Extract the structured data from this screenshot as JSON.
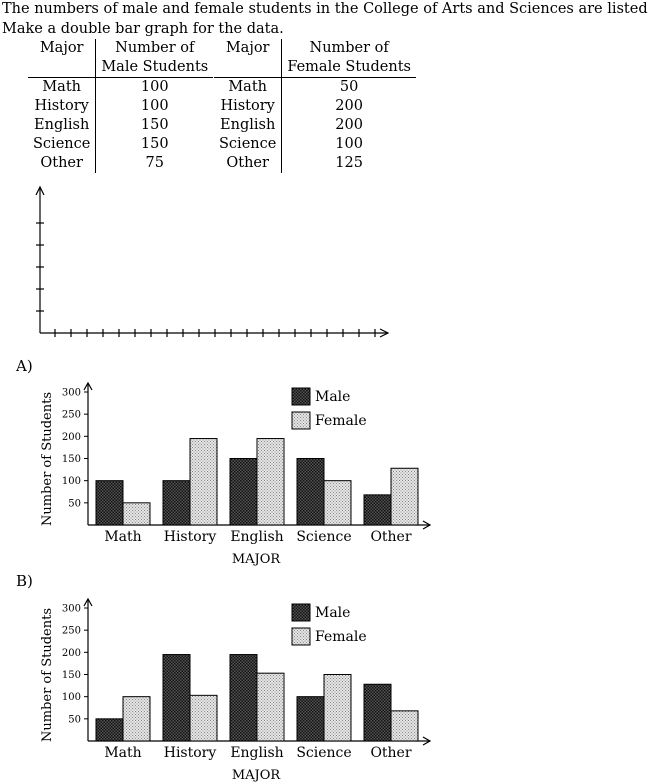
{
  "question": {
    "line1": "The numbers of male and female students in the College of Arts and Sciences are listed below by major.",
    "line2": "Make a double bar graph for the data."
  },
  "male_table": {
    "col1": "Major",
    "col2_line1": "Number of",
    "col2_line2": "Male Students",
    "rows": [
      [
        "Math",
        "100"
      ],
      [
        "History",
        "100"
      ],
      [
        "English",
        "150"
      ],
      [
        "Science",
        "150"
      ],
      [
        "Other",
        "75"
      ]
    ]
  },
  "female_table": {
    "col1": "Major",
    "col2_line1": "Number of",
    "col2_line2": "Female Students",
    "rows": [
      [
        "Math",
        "50"
      ],
      [
        "History",
        "200"
      ],
      [
        "English",
        "200"
      ],
      [
        "Science",
        "100"
      ],
      [
        "Other",
        "125"
      ]
    ]
  },
  "options": {
    "a": "A)",
    "b": "B)"
  },
  "chart_data": [
    {
      "type": "bar",
      "title": "",
      "xlabel": "",
      "ylabel": "",
      "yticks": 5,
      "xticks": 21
    },
    {
      "type": "bar",
      "categories": [
        "Math",
        "History",
        "English",
        "Science",
        "Other"
      ],
      "series": [
        {
          "name": "Male",
          "values": [
            100,
            100,
            150,
            150,
            68
          ]
        },
        {
          "name": "Female",
          "values": [
            50,
            195,
            195,
            100,
            128
          ]
        }
      ],
      "ylim": [
        0,
        300
      ],
      "yticks": [
        50,
        100,
        150,
        200,
        250,
        300
      ],
      "xlabel": "MAJOR",
      "ylabel": "Number of Students",
      "legend": "top-right"
    },
    {
      "type": "bar",
      "categories": [
        "Math",
        "History",
        "English",
        "Science",
        "Other"
      ],
      "series": [
        {
          "name": "Male",
          "values": [
            50,
            195,
            195,
            100,
            128
          ]
        },
        {
          "name": "Female",
          "values": [
            100,
            103,
            153,
            150,
            68
          ]
        }
      ],
      "ylim": [
        0,
        300
      ],
      "yticks": [
        50,
        100,
        150,
        200,
        250,
        300
      ],
      "xlabel": "MAJOR",
      "ylabel": "Number of Students",
      "legend": "top-right"
    }
  ]
}
